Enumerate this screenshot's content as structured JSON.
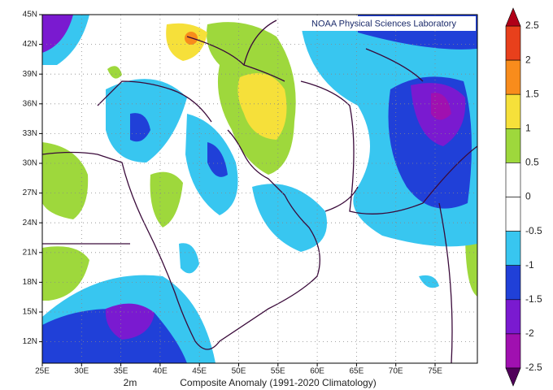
{
  "map": {
    "banner": "NOAA Physical Sciences Laboratory",
    "caption_field": "2m",
    "caption": "Composite Anomaly (1991-2020 Climatology)",
    "lat_labels": [
      "45N",
      "42N",
      "39N",
      "36N",
      "33N",
      "30N",
      "27N",
      "24N",
      "21N",
      "18N",
      "15N",
      "12N"
    ],
    "lon_labels": [
      "25E",
      "30E",
      "35E",
      "40E",
      "45E",
      "50E",
      "55E",
      "60E",
      "65E",
      "70E",
      "75E"
    ],
    "colorbar": {
      "labels": [
        2.5,
        2,
        1.5,
        1,
        0.5,
        0,
        -0.5,
        -1,
        -1.5,
        -2,
        -2.5
      ],
      "colors": [
        "#e8401c",
        "#f88c1c",
        "#f6e03a",
        "#9ed83c",
        "#ffffff",
        "#ffffff",
        "#38c6f0",
        "#2040d8",
        "#7a1ad0",
        "#a010b0"
      ],
      "arrow_colors": [
        "#b00018",
        "#50005a"
      ]
    }
  }
}
